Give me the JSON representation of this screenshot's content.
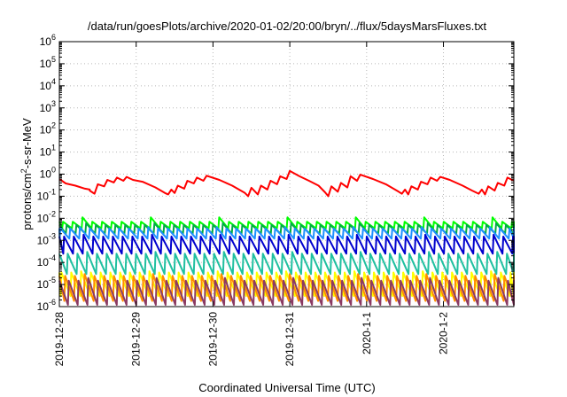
{
  "chart_data": {
    "type": "line",
    "title": "/data/run/goesPlots/archive/2020-01-02/20:00/bryn/../flux/5daysMarsFluxes.txt",
    "xlabel": "Coordinated Universal Time (UTC)",
    "ylabel_main": "protons/cm",
    "ylabel_sup": "2",
    "ylabel_rest": "-s-sr-MeV",
    "y_scale": "log",
    "ylim": [
      1e-06,
      1000000.0
    ],
    "xlim": [
      "2019-12-28 00:00",
      "2020-01-02 22:00"
    ],
    "grid": true,
    "legend": "none",
    "y_ticks": [
      {
        "value": 1e-06,
        "base": "10",
        "exp": "-6"
      },
      {
        "value": 1e-05,
        "base": "10",
        "exp": "-5"
      },
      {
        "value": 0.0001,
        "base": "10",
        "exp": "-4"
      },
      {
        "value": 0.001,
        "base": "10",
        "exp": "-3"
      },
      {
        "value": 0.01,
        "base": "10",
        "exp": "-2"
      },
      {
        "value": 0.1,
        "base": "10",
        "exp": "-1"
      },
      {
        "value": 1.0,
        "base": "10",
        "exp": "0"
      },
      {
        "value": 10.0,
        "base": "10",
        "exp": "1"
      },
      {
        "value": 100.0,
        "base": "10",
        "exp": "2"
      },
      {
        "value": 1000.0,
        "base": "10",
        "exp": "3"
      },
      {
        "value": 10000.0,
        "base": "10",
        "exp": "4"
      },
      {
        "value": 100000.0,
        "base": "10",
        "exp": "5"
      },
      {
        "value": 1000000.0,
        "base": "10",
        "exp": "6"
      }
    ],
    "x_ticks": [
      {
        "value": "2019-12-28",
        "label": "2019-12-28"
      },
      {
        "value": "2019-12-29",
        "label": "2019-12-29"
      },
      {
        "value": "2019-12-30",
        "label": "2019-12-30"
      },
      {
        "value": "2019-12-31",
        "label": "2019-12-31"
      },
      {
        "value": "2020-01-01",
        "label": "2020-1-1"
      },
      {
        "value": "2020-01-02",
        "label": "2020-1-2"
      }
    ],
    "series": [
      {
        "color": "#ff0000",
        "points": [
          [
            "2019-12-28 00:00",
            0.6
          ],
          [
            "2019-12-28 02:00",
            0.38
          ],
          [
            "2019-12-28 05:00",
            0.3
          ],
          [
            "2019-12-28 08:00",
            0.22
          ],
          [
            "2019-12-28 09:30",
            0.2
          ],
          [
            "2019-12-28 09:30",
            0.18
          ],
          [
            "2019-12-28 11:00",
            0.13
          ],
          [
            "2019-12-28 12:00",
            0.35
          ],
          [
            "2019-12-28 14:00",
            0.28
          ],
          [
            "2019-12-28 15:00",
            0.55
          ],
          [
            "2019-12-28 17:00",
            0.42
          ],
          [
            "2019-12-28 18:00",
            0.7
          ],
          [
            "2019-12-28 20:00",
            0.5
          ],
          [
            "2019-12-28 21:00",
            0.75
          ],
          [
            "2019-12-28 23:00",
            0.55
          ],
          [
            "2019-12-29 02:00",
            0.45
          ],
          [
            "2019-12-29 06:00",
            0.25
          ],
          [
            "2019-12-29 09:00",
            0.14
          ],
          [
            "2019-12-29 10:00",
            0.12
          ],
          [
            "2019-12-29 11:00",
            0.2
          ],
          [
            "2019-12-29 12:00",
            0.14
          ],
          [
            "2019-12-29 13:00",
            0.3
          ],
          [
            "2019-12-29 15:00",
            0.22
          ],
          [
            "2019-12-29 16:00",
            0.5
          ],
          [
            "2019-12-29 18:00",
            0.38
          ],
          [
            "2019-12-29 19:00",
            0.7
          ],
          [
            "2019-12-29 21:00",
            0.5
          ],
          [
            "2019-12-29 22:00",
            0.85
          ],
          [
            "2019-12-30 02:00",
            0.55
          ],
          [
            "2019-12-30 06:00",
            0.3
          ],
          [
            "2019-12-30 10:00",
            0.14
          ],
          [
            "2019-12-30 11:00",
            0.1
          ],
          [
            "2019-12-30 12:00",
            0.24
          ],
          [
            "2019-12-30 14:00",
            0.12
          ],
          [
            "2019-12-30 15:00",
            0.3
          ],
          [
            "2019-12-30 17:00",
            0.2
          ],
          [
            "2019-12-30 18:00",
            0.5
          ],
          [
            "2019-12-30 20:00",
            0.35
          ],
          [
            "2019-12-30 21:00",
            0.8
          ],
          [
            "2019-12-30 23:00",
            0.6
          ],
          [
            "2019-12-31 00:00",
            1.4
          ],
          [
            "2019-12-31 03:00",
            0.8
          ],
          [
            "2019-12-31 06:00",
            0.5
          ],
          [
            "2019-12-31 09:00",
            0.3
          ],
          [
            "2019-12-31 11:00",
            0.15
          ],
          [
            "2019-12-31 12:00",
            0.1
          ],
          [
            "2019-12-31 13:00",
            0.28
          ],
          [
            "2019-12-31 15:00",
            0.16
          ],
          [
            "2019-12-31 16:00",
            0.4
          ],
          [
            "2019-12-31 18:00",
            0.25
          ],
          [
            "2019-12-31 19:00",
            0.8
          ],
          [
            "2019-12-31 21:00",
            0.5
          ],
          [
            "2019-12-31 22:00",
            0.95
          ],
          [
            "2020-01-01 02:00",
            0.6
          ],
          [
            "2020-01-01 06:00",
            0.35
          ],
          [
            "2020-01-01 10:00",
            0.16
          ],
          [
            "2020-01-01 11:00",
            0.13
          ],
          [
            "2020-01-01 12:00",
            0.2
          ],
          [
            "2020-01-01 13:00",
            0.12
          ],
          [
            "2020-01-01 14:00",
            0.28
          ],
          [
            "2020-01-01 16:00",
            0.2
          ],
          [
            "2020-01-01 17:00",
            0.45
          ],
          [
            "2020-01-01 19:00",
            0.35
          ],
          [
            "2020-01-01 20:00",
            0.7
          ],
          [
            "2020-01-01 22:00",
            0.5
          ],
          [
            "2020-01-01 23:00",
            0.75
          ],
          [
            "2020-01-02 02:00",
            0.55
          ],
          [
            "2020-01-02 06:00",
            0.3
          ],
          [
            "2020-01-02 09:00",
            0.18
          ],
          [
            "2020-01-02 11:00",
            0.13
          ],
          [
            "2020-01-02 12:00",
            0.2
          ],
          [
            "2020-01-02 13:00",
            0.12
          ],
          [
            "2020-01-02 14:00",
            0.28
          ],
          [
            "2020-01-02 16:00",
            0.18
          ],
          [
            "2020-01-02 17:00",
            0.4
          ],
          [
            "2020-01-02 19:00",
            0.3
          ],
          [
            "2020-01-02 20:00",
            0.7
          ],
          [
            "2020-01-02 22:00",
            0.5
          ]
        ]
      },
      {
        "color": "#00ff00",
        "sawtooth": {
          "hi": 0.007,
          "lo": 0.0035,
          "peak": 0.011
        }
      },
      {
        "color": "#00aa44",
        "sawtooth": {
          "hi": 0.005,
          "lo": 0.002,
          "peak": 0.006
        }
      },
      {
        "color": "#1e90ff",
        "sawtooth": {
          "hi": 0.0035,
          "lo": 0.0012,
          "peak": 0.004
        }
      },
      {
        "color": "#0000cd",
        "sawtooth": {
          "hi": 0.0015,
          "lo": 0.00025,
          "peak": 0.0018
        }
      },
      {
        "color": "#20c0a0",
        "sawtooth": {
          "hi": 0.00025,
          "lo": 3e-05,
          "peak": 0.0003
        }
      },
      {
        "color": "#ffff00",
        "sawtooth": {
          "hi": 3.5e-05,
          "lo": 3e-06,
          "peak": 4e-05
        }
      },
      {
        "color": "#ff8c00",
        "sawtooth": {
          "hi": 2.5e-05,
          "lo": 1.8e-06,
          "peak": 3e-05
        }
      },
      {
        "color": "#8b3a62",
        "sawtooth": {
          "hi": 1.5e-05,
          "lo": 1.2e-06,
          "peak": 2e-05
        }
      }
    ]
  }
}
